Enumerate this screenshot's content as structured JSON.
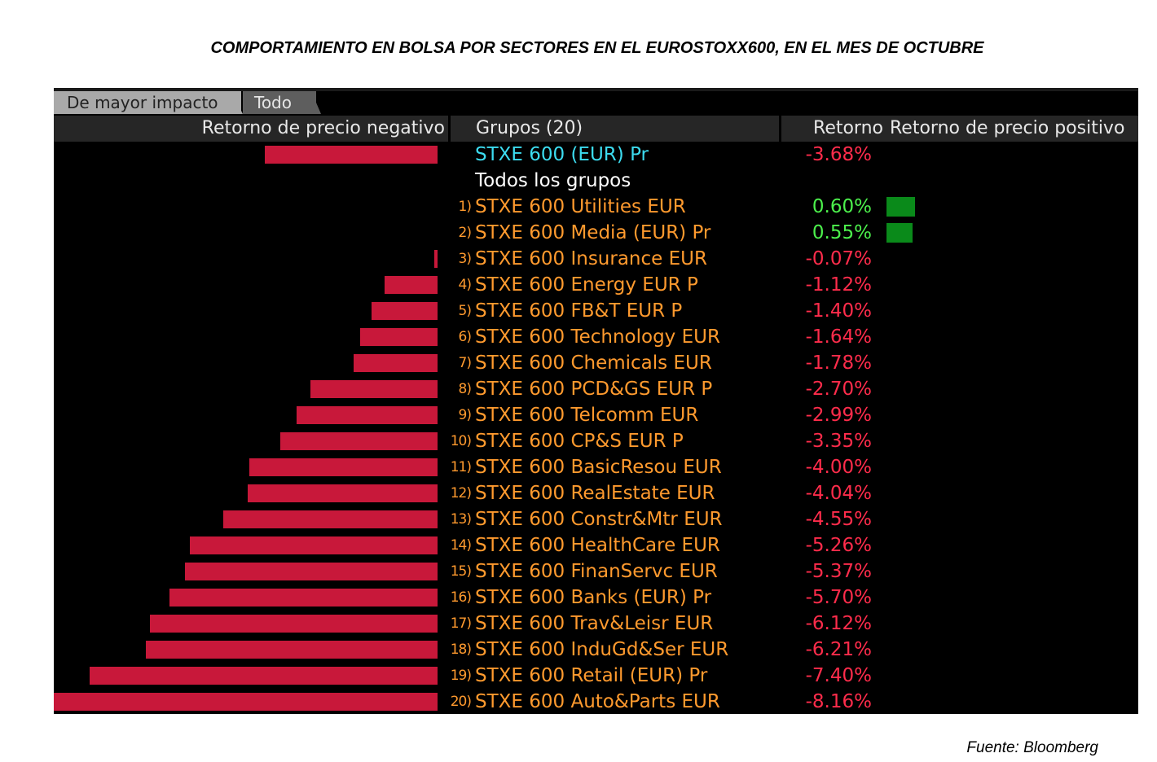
{
  "title": "COMPORTAMIENTO EN BOLSA POR SECTORES EN EL EUROSTOXX600, EN EL MES DE OCTUBRE",
  "source": "Fuente: Bloomberg",
  "tabs": [
    {
      "label": "De mayor impacto",
      "active": true
    },
    {
      "label": "Todo",
      "active": false
    }
  ],
  "headers": {
    "negative": "Retorno de precio negativo",
    "groups": "Grupos (20)",
    "return": "Retorno",
    "positive": "Retorno de precio positivo"
  },
  "colors": {
    "negative_bar": "#c8183a",
    "positive_bar": "#0a8a1a",
    "negative_text": "#ff2c4b",
    "positive_text": "#4cf04c",
    "group_text": "#ff9a2e",
    "index_text": "#3cdcf0"
  },
  "chart_data": {
    "type": "bar",
    "index": {
      "name": "STXE 600 (EUR) Pr",
      "value": -3.68,
      "label": "-3.68%"
    },
    "all_groups_label": "Todos los grupos",
    "categories": [
      "STXE 600 Utilities EUR",
      "STXE 600 Media (EUR) Pr",
      "STXE 600 Insurance EUR",
      "STXE 600 Energy EUR P",
      "STXE 600 FB&T EUR P",
      "STXE 600 Technology EUR",
      "STXE 600 Chemicals EUR",
      "STXE 600 PCD&GS EUR P",
      "STXE 600 Telcomm EUR",
      "STXE 600 CP&S EUR P",
      "STXE 600 BasicResou EUR",
      "STXE 600 RealEstate EUR",
      "STXE 600 Constr&Mtr EUR",
      "STXE 600 HealthCare EUR",
      "STXE 600 FinanServc EUR",
      "STXE 600 Banks (EUR) Pr",
      "STXE 600 Trav&Leisr EUR",
      "STXE 600 InduGd&Ser EUR",
      "STXE 600 Retail (EUR) Pr",
      "STXE 600 Auto&Parts EUR"
    ],
    "ranks": [
      "1)",
      "2)",
      "3)",
      "4)",
      "5)",
      "6)",
      "7)",
      "8)",
      "9)",
      "10)",
      "11)",
      "12)",
      "13)",
      "14)",
      "15)",
      "16)",
      "17)",
      "18)",
      "19)",
      "20)"
    ],
    "values": [
      0.6,
      0.55,
      -0.07,
      -1.12,
      -1.4,
      -1.64,
      -1.78,
      -2.7,
      -2.99,
      -3.35,
      -4.0,
      -4.04,
      -4.55,
      -5.26,
      -5.37,
      -5.7,
      -6.12,
      -6.21,
      -7.4,
      -8.16
    ],
    "value_labels": [
      "0.60%",
      "0.55%",
      "-0.07%",
      "-1.12%",
      "-1.40%",
      "-1.64%",
      "-1.78%",
      "-2.70%",
      "-2.99%",
      "-3.35%",
      "-4.00%",
      "-4.04%",
      "-4.55%",
      "-5.26%",
      "-5.37%",
      "-5.70%",
      "-6.12%",
      "-6.21%",
      "-7.40%",
      "-8.16%"
    ],
    "negative_scale_max": 8.16,
    "positive_scale_max": 0.6
  }
}
